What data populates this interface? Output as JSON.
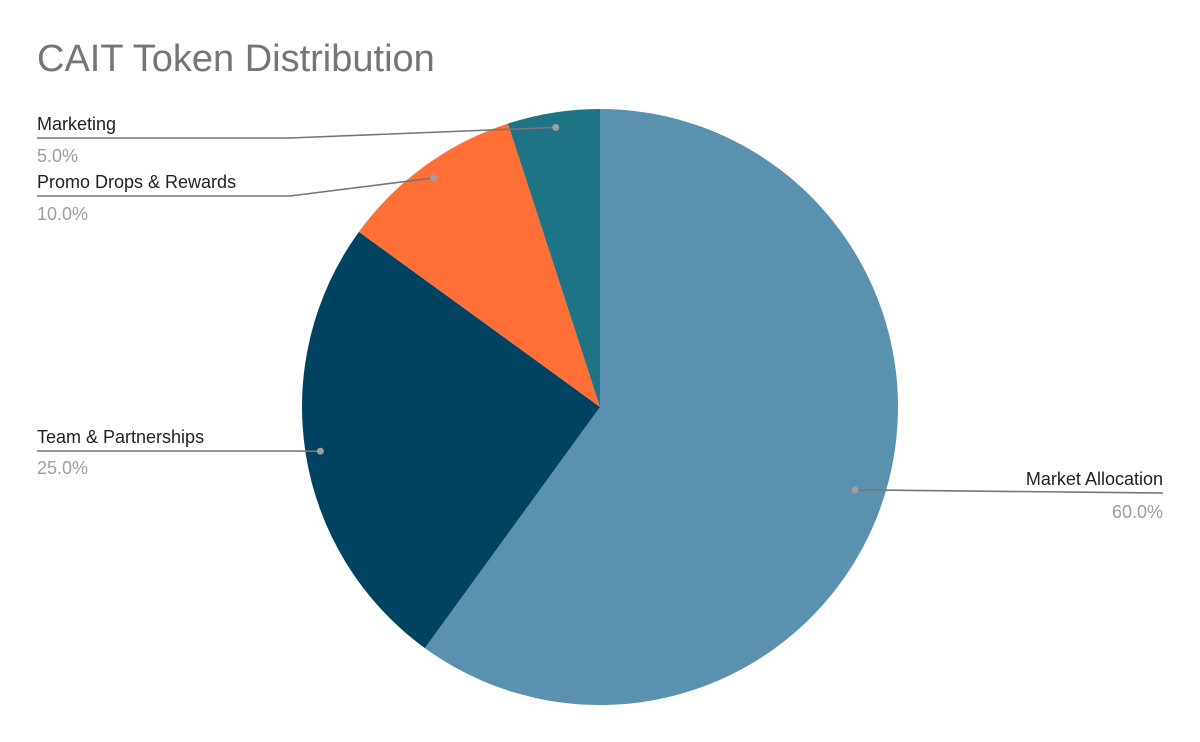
{
  "chart_data": {
    "type": "pie",
    "title": "CAIT Token Distribution",
    "slices": [
      {
        "label": "Market Allocation",
        "value": 60.0,
        "value_label": "60.0%",
        "color": "#5a91ae"
      },
      {
        "label": "Team & Partnerships",
        "value": 25.0,
        "value_label": "25.0%",
        "color": "#004360"
      },
      {
        "label": "Promo Drops & Rewards",
        "value": 10.0,
        "value_label": "10.0%",
        "color": "#ff6f36"
      },
      {
        "label": "Marketing",
        "value": 5.0,
        "value_label": "5.0%",
        "color": "#1e7385"
      }
    ],
    "start_angle": "12 o'clock",
    "direction": "clockwise",
    "legend": "callout labels"
  }
}
